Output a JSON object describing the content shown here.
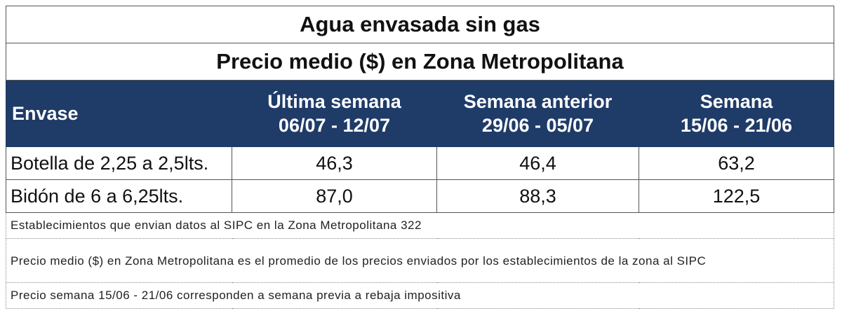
{
  "table": {
    "title": "Agua envasada sin gas",
    "subtitle": "Precio medio ($) en Zona Metropolitana",
    "headers": {
      "envase": "Envase",
      "col1_line1": "Última semana",
      "col1_line2": "06/07 - 12/07",
      "col2_line1": "Semana anterior",
      "col2_line2": "29/06 - 05/07",
      "col3_line1": "Semana",
      "col3_line2": "15/06 - 21/06"
    },
    "rows": [
      {
        "envase": "Botella de 2,25 a 2,5lts.",
        "ultima": "46,3",
        "anterior": "46,4",
        "semana": "63,2"
      },
      {
        "envase": "Bidón de 6 a 6,25lts.",
        "ultima": "87,0",
        "anterior": "88,3",
        "semana": "122,5"
      }
    ],
    "notes": [
      "Establecimientos que envian datos al SIPC en la Zona Metropolitana 322",
      "Precio medio ($) en Zona Metropolitana es el promedio de los precios enviados por los establecimientos de la zona al SIPC",
      "Precio semana 15/06 - 21/06 corresponden a semana previa a rebaja impositiva"
    ]
  }
}
